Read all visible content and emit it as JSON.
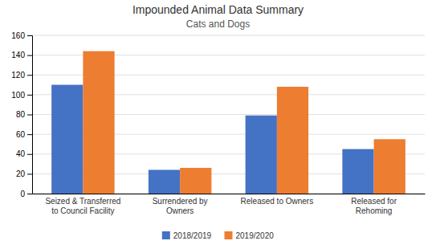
{
  "chart_data": {
    "type": "bar",
    "title": "Impounded Animal Data Summary",
    "subtitle": "Cats and Dogs",
    "categories": [
      "Seized & Transferred\nto Council Facility",
      "Surrendered by\nOwners",
      "Released to Owners",
      "Released for\nRehoming"
    ],
    "series": [
      {
        "name": "2018/2019",
        "color": "#4472C4",
        "values": [
          110,
          24,
          79,
          45
        ]
      },
      {
        "name": "2019/2020",
        "color": "#ED7D31",
        "values": [
          144,
          26,
          108,
          55
        ]
      }
    ],
    "ylim": [
      0,
      160
    ],
    "yticks": [
      0,
      20,
      40,
      60,
      80,
      100,
      120,
      140,
      160
    ],
    "grid": true,
    "legend": "bottom"
  }
}
